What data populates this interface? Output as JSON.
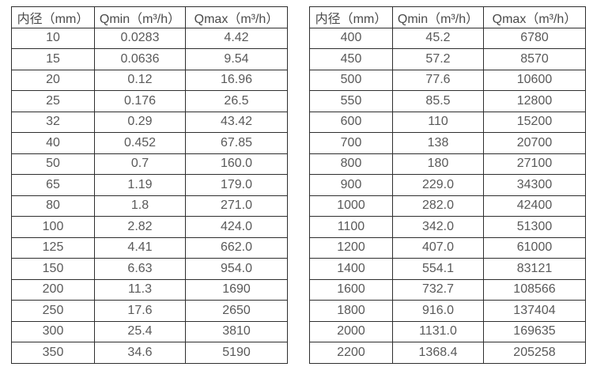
{
  "colors": {
    "background": "#ffffff",
    "border": "#2e2e2e",
    "header_text": "#4a4a4a",
    "cell_text": "#595959"
  },
  "table_left": {
    "headers": [
      "内径（mm）",
      "Qmin（m³/h）",
      "Qmax（m³/h）"
    ],
    "rows": [
      [
        "10",
        "0.0283",
        "4.42"
      ],
      [
        "15",
        "0.0636",
        "9.54"
      ],
      [
        "20",
        "0.12",
        "16.96"
      ],
      [
        "25",
        "0.176",
        "26.5"
      ],
      [
        "32",
        "0.29",
        "43.42"
      ],
      [
        "40",
        "0.452",
        "67.85"
      ],
      [
        "50",
        "0.7",
        "160.0"
      ],
      [
        "65",
        "1.19",
        "179.0"
      ],
      [
        "80",
        "1.8",
        "271.0"
      ],
      [
        "100",
        "2.82",
        "424.0"
      ],
      [
        "125",
        "4.41",
        "662.0"
      ],
      [
        "150",
        "6.63",
        "954.0"
      ],
      [
        "200",
        "11.3",
        "1690"
      ],
      [
        "250",
        "17.6",
        "2650"
      ],
      [
        "300",
        "25.4",
        "3810"
      ],
      [
        "350",
        "34.6",
        "5190"
      ]
    ]
  },
  "table_right": {
    "headers": [
      "内径（mm）",
      "Qmin（m³/h）",
      "Qmax（m³/h）"
    ],
    "rows": [
      [
        "400",
        "45.2",
        "6780"
      ],
      [
        "450",
        "57.2",
        "8570"
      ],
      [
        "500",
        "77.6",
        "10600"
      ],
      [
        "550",
        "85.5",
        "12800"
      ],
      [
        "600",
        "110",
        "15200"
      ],
      [
        "700",
        "138",
        "20700"
      ],
      [
        "800",
        "180",
        "27100"
      ],
      [
        "900",
        "229.0",
        "34300"
      ],
      [
        "1000",
        "282.0",
        "42400"
      ],
      [
        "1100",
        "342.0",
        "51300"
      ],
      [
        "1200",
        "407.0",
        "61000"
      ],
      [
        "1400",
        "554.1",
        "83121"
      ],
      [
        "1600",
        "732.7",
        "108566"
      ],
      [
        "1800",
        "916.0",
        "137404"
      ],
      [
        "2000",
        "1131.0",
        "169635"
      ],
      [
        "2200",
        "1368.4",
        "205258"
      ]
    ]
  }
}
